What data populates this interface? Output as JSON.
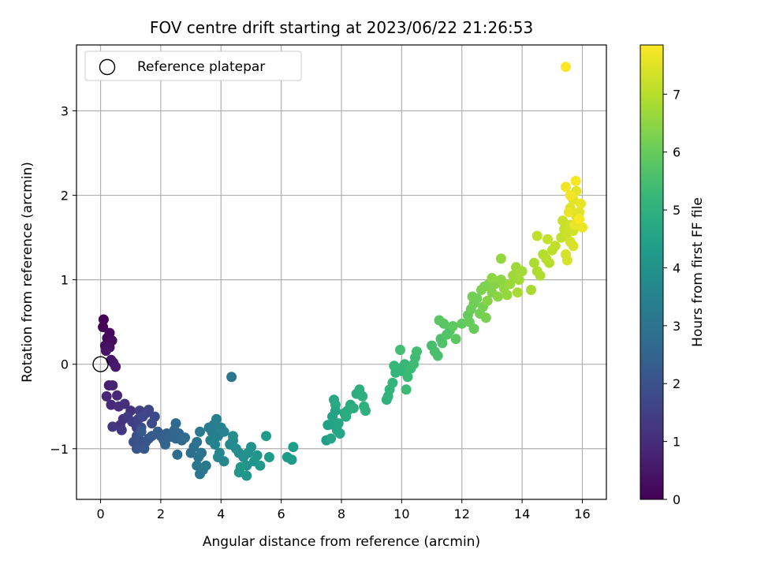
{
  "chart_data": {
    "type": "scatter",
    "title": "FOV centre drift starting at 2023/06/22 21:26:53",
    "xlabel": "Angular distance from reference (arcmin)",
    "ylabel": "Rotation from reference (arcmin)",
    "xlim": [
      -0.8,
      16.8
    ],
    "ylim": [
      -1.6,
      3.78
    ],
    "xticks": [
      0,
      2,
      4,
      6,
      8,
      10,
      12,
      14,
      16
    ],
    "yticks": [
      -1,
      0,
      1,
      2,
      3
    ],
    "grid": true,
    "legend": {
      "position": "top-left",
      "entries": [
        "Reference platepar"
      ]
    },
    "reference_point": {
      "x": 0,
      "y": 0
    },
    "colorbar": {
      "label": "Hours from first FF file",
      "range": [
        0,
        7.85
      ],
      "ticks": [
        0,
        1,
        2,
        3,
        4,
        5,
        6,
        7
      ],
      "colormap": "viridis"
    },
    "series": [
      {
        "columns": [
          "x",
          "y",
          "hours"
        ],
        "points": [
          [
            0.1,
            0.53,
            0.05
          ],
          [
            0.08,
            0.44,
            0.1
          ],
          [
            0.3,
            0.37,
            0.15
          ],
          [
            0.22,
            0.31,
            0.2
          ],
          [
            0.38,
            0.28,
            0.25
          ],
          [
            0.15,
            0.22,
            0.3
          ],
          [
            0.3,
            0.2,
            0.35
          ],
          [
            0.18,
            0.16,
            0.4
          ],
          [
            0.35,
            0.05,
            0.45
          ],
          [
            0.42,
            0.02,
            0.5
          ],
          [
            0.5,
            -0.03,
            0.55
          ],
          [
            0.28,
            -0.25,
            0.65
          ],
          [
            0.4,
            -0.25,
            0.75
          ],
          [
            0.2,
            -0.38,
            0.8
          ],
          [
            0.55,
            -0.37,
            0.9
          ],
          [
            0.35,
            -0.48,
            0.95
          ],
          [
            0.6,
            -0.5,
            1.0
          ],
          [
            0.8,
            -0.47,
            1.05
          ],
          [
            1.0,
            -0.55,
            1.15
          ],
          [
            0.75,
            -0.65,
            1.2
          ],
          [
            0.65,
            -0.72,
            1.2
          ],
          [
            0.4,
            -0.74,
            1.25
          ],
          [
            0.7,
            -0.78,
            1.3
          ],
          [
            0.9,
            -0.62,
            1.35
          ],
          [
            1.05,
            -0.68,
            1.4
          ],
          [
            1.2,
            -0.75,
            1.45
          ],
          [
            1.3,
            -0.55,
            1.5
          ],
          [
            1.25,
            -0.65,
            1.55
          ],
          [
            1.5,
            -0.58,
            1.6
          ],
          [
            1.6,
            -0.54,
            1.65
          ],
          [
            1.4,
            -0.62,
            1.7
          ],
          [
            1.8,
            -0.62,
            1.75
          ],
          [
            1.7,
            -0.7,
            1.8
          ],
          [
            1.35,
            -0.75,
            1.85
          ],
          [
            1.2,
            -0.85,
            1.9
          ],
          [
            1.1,
            -0.92,
            1.95
          ],
          [
            1.3,
            -0.9,
            2.0
          ],
          [
            1.5,
            -0.92,
            2.05
          ],
          [
            1.6,
            -0.88,
            2.1
          ],
          [
            1.2,
            -1.0,
            2.1
          ],
          [
            1.45,
            -1.0,
            2.15
          ],
          [
            1.35,
            -0.8,
            2.2
          ],
          [
            1.7,
            -0.85,
            2.25
          ],
          [
            1.9,
            -0.8,
            2.3
          ],
          [
            2.0,
            -0.85,
            2.3
          ],
          [
            2.1,
            -0.9,
            2.35
          ],
          [
            2.2,
            -0.82,
            2.4
          ],
          [
            2.3,
            -0.86,
            2.45
          ],
          [
            2.15,
            -0.95,
            2.5
          ],
          [
            2.5,
            -0.88,
            2.55
          ],
          [
            2.6,
            -0.82,
            2.6
          ],
          [
            2.5,
            -0.7,
            2.65
          ],
          [
            2.45,
            -0.78,
            2.65
          ],
          [
            2.7,
            -0.9,
            2.7
          ],
          [
            2.8,
            -0.87,
            2.75
          ],
          [
            2.55,
            -1.07,
            2.8
          ],
          [
            3.0,
            -1.05,
            2.85
          ],
          [
            3.1,
            -0.98,
            2.9
          ],
          [
            3.2,
            -0.92,
            2.95
          ],
          [
            3.25,
            -1.1,
            3.0
          ],
          [
            3.35,
            -1.05,
            3.0
          ],
          [
            3.2,
            -1.2,
            3.05
          ],
          [
            3.4,
            -1.25,
            3.1
          ],
          [
            3.3,
            -1.3,
            3.1
          ],
          [
            3.5,
            -1.2,
            3.15
          ],
          [
            3.3,
            -0.8,
            3.2
          ],
          [
            3.6,
            -0.75,
            3.25
          ],
          [
            3.7,
            -0.8,
            3.3
          ],
          [
            3.75,
            -0.72,
            3.35
          ],
          [
            3.85,
            -0.65,
            3.4
          ],
          [
            3.9,
            -0.85,
            3.4
          ],
          [
            3.65,
            -0.9,
            3.45
          ],
          [
            4.0,
            -0.75,
            3.5
          ],
          [
            3.8,
            -0.95,
            3.5
          ],
          [
            4.1,
            -0.8,
            3.55
          ],
          [
            3.95,
            -1.05,
            3.6
          ],
          [
            4.1,
            -1.15,
            3.65
          ],
          [
            3.9,
            -1.1,
            3.65
          ],
          [
            4.3,
            -0.95,
            3.7
          ],
          [
            4.4,
            -0.9,
            3.75
          ],
          [
            4.5,
            -1.0,
            3.8
          ],
          [
            4.6,
            -1.05,
            3.85
          ],
          [
            4.4,
            -0.85,
            3.85
          ],
          [
            4.75,
            -1.1,
            3.9
          ],
          [
            4.9,
            -1.05,
            3.95
          ],
          [
            5.0,
            -0.98,
            4.0
          ],
          [
            4.85,
            -1.2,
            4.0
          ],
          [
            5.1,
            -1.15,
            4.05
          ],
          [
            4.6,
            -1.28,
            4.1
          ],
          [
            4.85,
            -1.32,
            4.1
          ],
          [
            4.65,
            -1.22,
            4.15
          ],
          [
            5.2,
            -1.08,
            4.15
          ],
          [
            5.3,
            -1.2,
            4.2
          ],
          [
            5.5,
            -0.85,
            4.25
          ],
          [
            5.6,
            -1.1,
            4.3
          ],
          [
            4.35,
            -0.15,
            3.1
          ],
          [
            6.2,
            -1.1,
            4.25
          ],
          [
            6.35,
            -1.13,
            4.3
          ],
          [
            6.4,
            -0.98,
            4.35
          ],
          [
            7.5,
            -0.9,
            4.4
          ],
          [
            7.55,
            -0.72,
            4.45
          ],
          [
            7.7,
            -0.62,
            4.5
          ],
          [
            7.75,
            -0.72,
            4.5
          ],
          [
            7.8,
            -0.55,
            4.55
          ],
          [
            7.85,
            -0.78,
            4.6
          ],
          [
            7.65,
            -0.88,
            4.6
          ],
          [
            7.9,
            -0.7,
            4.65
          ],
          [
            7.95,
            -0.82,
            4.65
          ],
          [
            7.75,
            -0.42,
            4.7
          ],
          [
            7.8,
            -0.48,
            4.7
          ],
          [
            8.1,
            -0.58,
            4.75
          ],
          [
            8.2,
            -0.55,
            4.8
          ],
          [
            8.3,
            -0.48,
            4.85
          ],
          [
            8.15,
            -0.62,
            4.85
          ],
          [
            8.4,
            -0.52,
            4.9
          ],
          [
            8.5,
            -0.35,
            4.9
          ],
          [
            8.6,
            -0.3,
            4.95
          ],
          [
            8.7,
            -0.38,
            4.95
          ],
          [
            8.75,
            -0.5,
            5.0
          ],
          [
            8.8,
            -0.55,
            5.0
          ],
          [
            9.5,
            -0.42,
            5.05
          ],
          [
            9.55,
            -0.38,
            5.1
          ],
          [
            9.6,
            -0.3,
            5.1
          ],
          [
            9.7,
            -0.22,
            5.15
          ],
          [
            9.8,
            -0.1,
            5.15
          ],
          [
            9.9,
            -0.05,
            5.2
          ],
          [
            10.0,
            -0.08,
            5.2
          ],
          [
            9.75,
            -0.02,
            5.25
          ],
          [
            10.1,
            0.0,
            5.25
          ],
          [
            10.2,
            -0.15,
            5.3
          ],
          [
            10.3,
            -0.05,
            5.3
          ],
          [
            10.15,
            -0.3,
            5.35
          ],
          [
            10.4,
            0.0,
            5.4
          ],
          [
            10.45,
            0.08,
            5.4
          ],
          [
            10.5,
            0.15,
            5.45
          ],
          [
            9.95,
            0.17,
            5.45
          ],
          [
            11.0,
            0.22,
            5.5
          ],
          [
            11.1,
            0.15,
            5.55
          ],
          [
            11.2,
            0.1,
            5.55
          ],
          [
            11.3,
            0.3,
            5.6
          ],
          [
            11.35,
            0.25,
            5.65
          ],
          [
            11.5,
            0.35,
            5.7
          ],
          [
            11.6,
            0.4,
            5.7
          ],
          [
            11.4,
            0.48,
            5.75
          ],
          [
            11.25,
            0.52,
            5.8
          ],
          [
            11.7,
            0.45,
            5.85
          ],
          [
            11.8,
            0.3,
            5.85
          ],
          [
            12.0,
            0.48,
            5.9
          ],
          [
            12.2,
            0.58,
            5.95
          ],
          [
            12.25,
            0.5,
            6.0
          ],
          [
            12.4,
            0.42,
            6.0
          ],
          [
            12.3,
            0.65,
            6.05
          ],
          [
            12.4,
            0.72,
            6.1
          ],
          [
            12.5,
            0.78,
            6.1
          ],
          [
            12.35,
            0.8,
            6.15
          ],
          [
            12.6,
            0.6,
            6.15
          ],
          [
            12.7,
            0.68,
            6.2
          ],
          [
            12.8,
            0.55,
            6.25
          ],
          [
            12.65,
            0.88,
            6.25
          ],
          [
            12.75,
            0.92,
            6.3
          ],
          [
            12.9,
            0.95,
            6.3
          ],
          [
            13.0,
            0.85,
            6.35
          ],
          [
            12.85,
            0.75,
            6.4
          ],
          [
            13.1,
            0.95,
            6.4
          ],
          [
            13.2,
            0.8,
            6.45
          ],
          [
            13.0,
            1.02,
            6.5
          ],
          [
            13.3,
            1.0,
            6.5
          ],
          [
            13.4,
            0.9,
            6.55
          ],
          [
            13.5,
            0.82,
            6.6
          ],
          [
            13.3,
            1.25,
            6.6
          ],
          [
            13.6,
            0.95,
            6.65
          ],
          [
            13.7,
            1.05,
            6.7
          ],
          [
            13.8,
            1.15,
            6.7
          ],
          [
            13.9,
            1.0,
            6.75
          ],
          [
            14.0,
            1.1,
            6.75
          ],
          [
            13.85,
            0.85,
            6.8
          ],
          [
            14.3,
            0.88,
            6.8
          ],
          [
            14.4,
            1.2,
            6.85
          ],
          [
            14.5,
            1.1,
            6.9
          ],
          [
            14.6,
            1.05,
            6.9
          ],
          [
            14.7,
            1.3,
            6.95
          ],
          [
            14.8,
            1.25,
            7.0
          ],
          [
            14.9,
            1.2,
            7.0
          ],
          [
            15.0,
            1.35,
            7.05
          ],
          [
            15.1,
            1.4,
            7.1
          ],
          [
            14.5,
            1.52,
            7.1
          ],
          [
            14.85,
            1.48,
            7.15
          ],
          [
            15.3,
            1.5,
            7.15
          ],
          [
            15.4,
            1.6,
            7.2
          ],
          [
            15.5,
            1.55,
            7.25
          ],
          [
            15.35,
            1.7,
            7.25
          ],
          [
            15.6,
            1.65,
            7.3
          ],
          [
            15.7,
            1.58,
            7.3
          ],
          [
            15.45,
            1.3,
            7.35
          ],
          [
            15.6,
            1.45,
            7.35
          ],
          [
            15.7,
            1.4,
            7.4
          ],
          [
            15.5,
            1.23,
            7.4
          ],
          [
            15.8,
            1.75,
            7.45
          ],
          [
            15.9,
            1.8,
            7.5
          ],
          [
            15.6,
            1.85,
            7.5
          ],
          [
            15.7,
            1.95,
            7.55
          ],
          [
            15.8,
            2.05,
            7.55
          ],
          [
            15.95,
            1.9,
            7.6
          ],
          [
            15.75,
            1.65,
            7.6
          ],
          [
            16.0,
            1.62,
            7.65
          ],
          [
            15.55,
            1.8,
            7.65
          ],
          [
            15.45,
            2.1,
            7.7
          ],
          [
            15.6,
            2.0,
            7.7
          ],
          [
            15.78,
            2.17,
            7.75
          ],
          [
            15.9,
            1.72,
            7.8
          ],
          [
            15.45,
            3.52,
            7.85
          ]
        ]
      }
    ]
  }
}
